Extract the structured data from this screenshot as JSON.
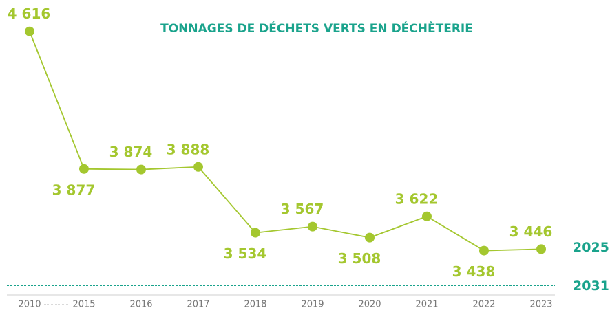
{
  "chart_data": {
    "type": "line",
    "title": "TONNAGES DE DÉCHETS VERTS EN DÉCHÈTERIE",
    "categories": [
      "2010",
      "2015",
      "2016",
      "2017",
      "2018",
      "2019",
      "2020",
      "2021",
      "2022",
      "2023"
    ],
    "series": [
      {
        "name": "Tonnages",
        "color": "#a4c72f",
        "values": [
          4616,
          3877,
          3874,
          3888,
          3534,
          3567,
          3508,
          3622,
          3438,
          3446
        ],
        "value_labels": [
          "4 616",
          "3 877",
          "3 874",
          "3 888",
          "3 534",
          "3 567",
          "3 508",
          "3 622",
          "3 438",
          "3 446"
        ]
      }
    ],
    "reference_lines": [
      {
        "label": "2025",
        "value": 3457,
        "color": "#1aa38c"
      },
      {
        "label": "2031",
        "value": 3250,
        "color": "#1aa38c"
      }
    ],
    "ylim": [
      3200,
      4700
    ]
  }
}
